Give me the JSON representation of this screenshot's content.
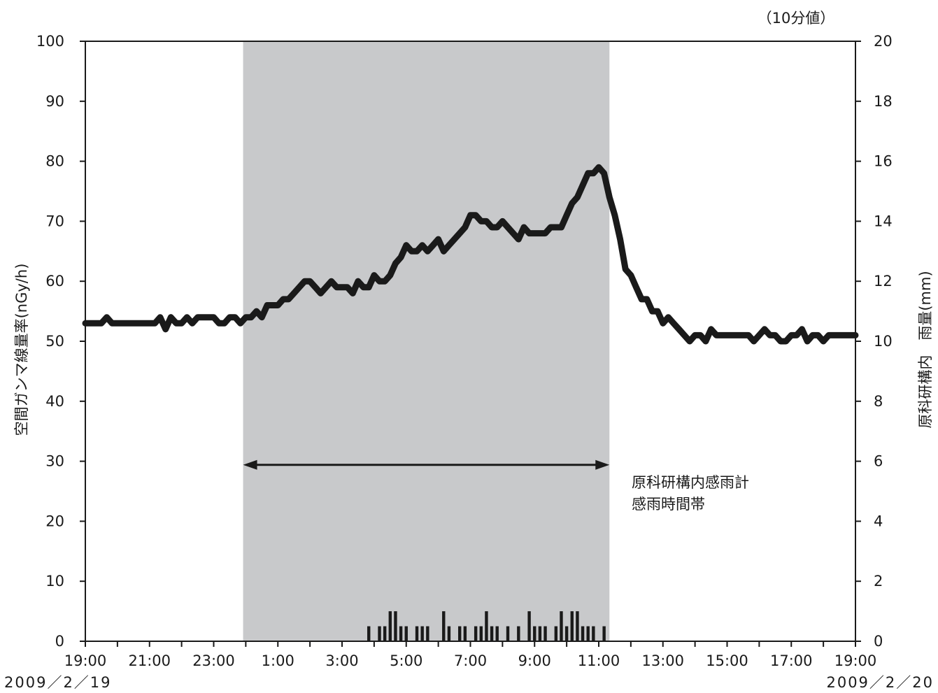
{
  "chart_data": {
    "type": "line",
    "unit_note": "（10分値）",
    "ylabel": "空間ガンマ線量率(nGy/h)",
    "y2label": "原科研構内　雨量(mm)",
    "ylim": [
      0,
      100
    ],
    "y2lim": [
      0,
      20
    ],
    "yticks": [
      "0",
      "10",
      "20",
      "30",
      "40",
      "50",
      "60",
      "70",
      "80",
      "90",
      "100"
    ],
    "y2ticks": [
      "0",
      "2",
      "4",
      "6",
      "8",
      "10",
      "12",
      "14",
      "16",
      "18",
      "20"
    ],
    "xlim_hours": [
      0,
      24
    ],
    "xticks": [
      "19:00",
      "21:00",
      "23:00",
      "1:00",
      "3:00",
      "5:00",
      "7:00",
      "9:00",
      "11:00",
      "13:00",
      "15:00",
      "17:00",
      "19:00"
    ],
    "date_start": "2009／2／19",
    "date_end": "2009／2／20",
    "rain_period": {
      "start": "23:55",
      "end": "11:20",
      "label_line1": "原科研構内感雨計",
      "label_line2": "感雨時間帯"
    },
    "series": [
      {
        "kind": "dose_rate_line",
        "points": [
          [
            "19:00",
            53
          ],
          [
            "19:30",
            53
          ],
          [
            "19:40",
            54
          ],
          [
            "19:50",
            53
          ],
          [
            "20:00",
            53
          ],
          [
            "20:30",
            53
          ],
          [
            "21:00",
            53
          ],
          [
            "21:10",
            53
          ],
          [
            "21:20",
            54
          ],
          [
            "21:30",
            52
          ],
          [
            "21:40",
            54
          ],
          [
            "21:50",
            53
          ],
          [
            "22:00",
            53
          ],
          [
            "22:10",
            54
          ],
          [
            "22:20",
            53
          ],
          [
            "22:30",
            54
          ],
          [
            "22:40",
            54
          ],
          [
            "23:00",
            54
          ],
          [
            "23:10",
            53
          ],
          [
            "23:20",
            53
          ],
          [
            "23:30",
            54
          ],
          [
            "23:40",
            54
          ],
          [
            "23:50",
            53
          ],
          [
            "0:00",
            54
          ],
          [
            "0:10",
            54
          ],
          [
            "0:20",
            55
          ],
          [
            "0:30",
            54
          ],
          [
            "0:40",
            56
          ],
          [
            "1:00",
            56
          ],
          [
            "1:10",
            57
          ],
          [
            "1:20",
            57
          ],
          [
            "1:30",
            58
          ],
          [
            "1:40",
            59
          ],
          [
            "1:50",
            60
          ],
          [
            "2:00",
            60
          ],
          [
            "2:10",
            59
          ],
          [
            "2:20",
            58
          ],
          [
            "2:30",
            59
          ],
          [
            "2:40",
            60
          ],
          [
            "2:50",
            59
          ],
          [
            "3:00",
            59
          ],
          [
            "3:10",
            59
          ],
          [
            "3:20",
            58
          ],
          [
            "3:30",
            60
          ],
          [
            "3:40",
            59
          ],
          [
            "3:50",
            59
          ],
          [
            "4:00",
            61
          ],
          [
            "4:10",
            60
          ],
          [
            "4:20",
            60
          ],
          [
            "4:30",
            61
          ],
          [
            "4:40",
            63
          ],
          [
            "4:50",
            64
          ],
          [
            "5:00",
            66
          ],
          [
            "5:10",
            65
          ],
          [
            "5:20",
            65
          ],
          [
            "5:30",
            66
          ],
          [
            "5:40",
            65
          ],
          [
            "5:50",
            66
          ],
          [
            "6:00",
            67
          ],
          [
            "6:10",
            65
          ],
          [
            "6:20",
            66
          ],
          [
            "6:30",
            67
          ],
          [
            "6:40",
            68
          ],
          [
            "6:50",
            69
          ],
          [
            "7:00",
            71
          ],
          [
            "7:10",
            71
          ],
          [
            "7:20",
            70
          ],
          [
            "7:30",
            70
          ],
          [
            "7:40",
            69
          ],
          [
            "7:50",
            69
          ],
          [
            "8:00",
            70
          ],
          [
            "8:10",
            69
          ],
          [
            "8:20",
            68
          ],
          [
            "8:30",
            67
          ],
          [
            "8:40",
            69
          ],
          [
            "8:50",
            68
          ],
          [
            "9:00",
            68
          ],
          [
            "9:10",
            68
          ],
          [
            "9:20",
            68
          ],
          [
            "9:30",
            69
          ],
          [
            "9:40",
            69
          ],
          [
            "9:50",
            69
          ],
          [
            "10:00",
            71
          ],
          [
            "10:10",
            73
          ],
          [
            "10:20",
            74
          ],
          [
            "10:30",
            76
          ],
          [
            "10:40",
            78
          ],
          [
            "10:50",
            78
          ],
          [
            "11:00",
            79
          ],
          [
            "11:10",
            78
          ],
          [
            "11:20",
            74
          ],
          [
            "11:30",
            71
          ],
          [
            "11:40",
            67
          ],
          [
            "11:50",
            62
          ],
          [
            "12:00",
            61
          ],
          [
            "12:10",
            59
          ],
          [
            "12:20",
            57
          ],
          [
            "12:30",
            57
          ],
          [
            "12:40",
            55
          ],
          [
            "12:50",
            55
          ],
          [
            "13:00",
            53
          ],
          [
            "13:10",
            54
          ],
          [
            "13:20",
            53
          ],
          [
            "13:30",
            52
          ],
          [
            "13:40",
            51
          ],
          [
            "13:50",
            50
          ],
          [
            "14:00",
            51
          ],
          [
            "14:10",
            51
          ],
          [
            "14:20",
            50
          ],
          [
            "14:30",
            52
          ],
          [
            "14:40",
            51
          ],
          [
            "14:50",
            51
          ],
          [
            "15:00",
            51
          ],
          [
            "15:20",
            51
          ],
          [
            "15:40",
            51
          ],
          [
            "15:50",
            50
          ],
          [
            "16:00",
            51
          ],
          [
            "16:10",
            52
          ],
          [
            "16:20",
            51
          ],
          [
            "16:30",
            51
          ],
          [
            "16:40",
            50
          ],
          [
            "16:50",
            50
          ],
          [
            "17:00",
            51
          ],
          [
            "17:10",
            51
          ],
          [
            "17:20",
            52
          ],
          [
            "17:30",
            50
          ],
          [
            "17:40",
            51
          ],
          [
            "17:50",
            51
          ],
          [
            "18:00",
            50
          ],
          [
            "18:10",
            51
          ],
          [
            "18:30",
            51
          ],
          [
            "18:50",
            51
          ],
          [
            "19:00",
            51
          ]
        ]
      },
      {
        "kind": "rainfall_bars",
        "bars": [
          [
            "3:50",
            0.5
          ],
          [
            "4:10",
            0.5
          ],
          [
            "4:20",
            0.5
          ],
          [
            "4:30",
            1.0
          ],
          [
            "4:40",
            1.0
          ],
          [
            "4:50",
            0.5
          ],
          [
            "5:00",
            0.5
          ],
          [
            "5:20",
            0.5
          ],
          [
            "5:30",
            0.5
          ],
          [
            "5:40",
            0.5
          ],
          [
            "6:10",
            1.0
          ],
          [
            "6:20",
            0.5
          ],
          [
            "6:40",
            0.5
          ],
          [
            "6:50",
            0.5
          ],
          [
            "7:10",
            0.5
          ],
          [
            "7:20",
            0.5
          ],
          [
            "7:30",
            1.0
          ],
          [
            "7:40",
            0.5
          ],
          [
            "7:50",
            0.5
          ],
          [
            "8:10",
            0.5
          ],
          [
            "8:30",
            0.5
          ],
          [
            "8:50",
            1.0
          ],
          [
            "9:00",
            0.5
          ],
          [
            "9:10",
            0.5
          ],
          [
            "9:20",
            0.5
          ],
          [
            "9:40",
            0.5
          ],
          [
            "9:50",
            1.0
          ],
          [
            "10:00",
            0.5
          ],
          [
            "10:10",
            1.0
          ],
          [
            "10:20",
            1.0
          ],
          [
            "10:30",
            0.5
          ],
          [
            "10:40",
            0.5
          ],
          [
            "10:50",
            0.5
          ],
          [
            "11:10",
            0.5
          ]
        ]
      }
    ],
    "colors": {
      "rain_band": "#c8c9cb",
      "line": "#1a1a1a",
      "bars": "#1a1a1a",
      "axes": "#1a1a1a"
    },
    "grid": false
  }
}
